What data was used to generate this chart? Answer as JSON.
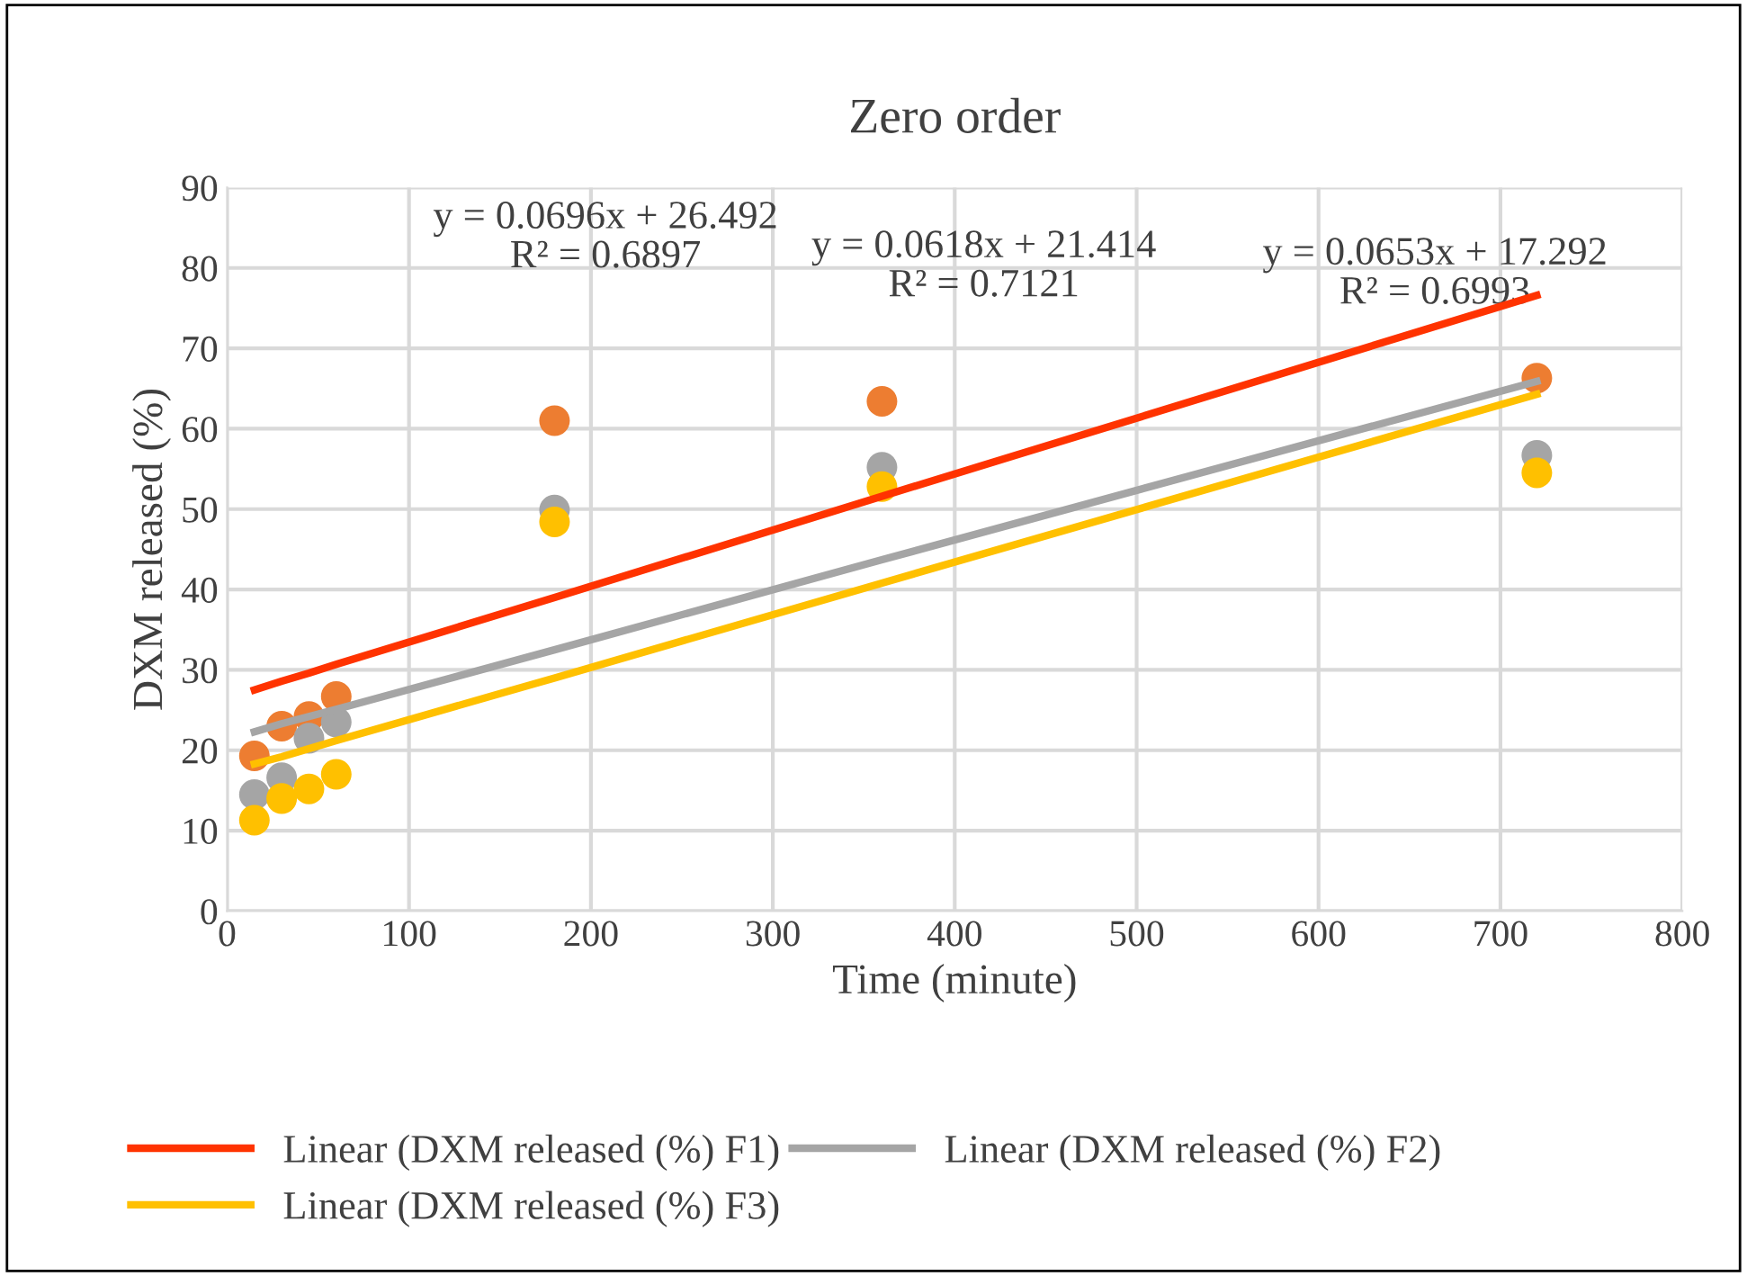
{
  "chart_data": {
    "type": "scatter",
    "title": "Zero order",
    "xlabel": "Time (minute)",
    "ylabel": "DXM released (%)",
    "x": [
      15,
      30,
      45,
      60,
      180,
      360,
      720
    ],
    "series": [
      {
        "color": "#ed7d31",
        "marker": "circle",
        "values": [
          19.3,
          23.0,
          24.2,
          26.7,
          61.0,
          63.4,
          66.3
        ]
      },
      {
        "color": "#a5a5a5",
        "marker": "circle",
        "values": [
          14.5,
          16.6,
          21.5,
          23.5,
          49.9,
          55.2,
          56.7
        ]
      },
      {
        "color": "#ffc000",
        "marker": "circle",
        "values": [
          11.3,
          14.0,
          15.2,
          17.0,
          48.4,
          52.8,
          54.5
        ]
      },
      {
        "type": "line",
        "name": "Linear (DXM released (%) F1)",
        "color": "#ff3300",
        "values": [
          27.5,
          28.6,
          29.6,
          30.7,
          39.0,
          51.6,
          76.6
        ]
      },
      {
        "type": "line",
        "name": "Linear (DXM released (%) F2)",
        "color": "#a5a5a5",
        "values": [
          22.3,
          23.3,
          24.2,
          25.1,
          32.5,
          43.7,
          65.9
        ]
      },
      {
        "type": "line",
        "name": "Linear (DXM released (%) F3)",
        "color": "#ffc000",
        "values": [
          18.3,
          19.2,
          20.2,
          21.2,
          29.0,
          40.8,
          64.3
        ]
      }
    ],
    "annotations": [
      "y = 0.0696x + 26.492\nR² = 0.6897",
      "y = 0.0618x + 21.414\nR² = 0.7121",
      "y = 0.0653x + 17.292\nR² = 0.6993"
    ],
    "xlim": [
      0,
      800
    ],
    "xticks": [
      0,
      100,
      200,
      300,
      400,
      500,
      600,
      700,
      800
    ],
    "ylim": [
      0,
      90
    ],
    "yticks": [
      0,
      10,
      20,
      30,
      40,
      50,
      60,
      70,
      80,
      90
    ],
    "grid": true,
    "legend": "bottom",
    "line_style": "solid"
  }
}
